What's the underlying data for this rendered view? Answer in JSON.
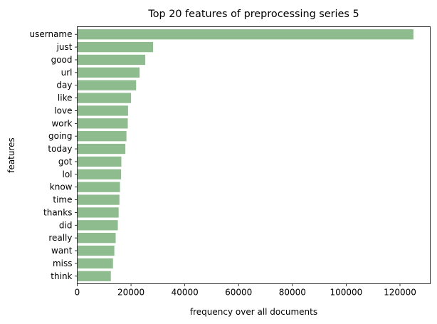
{
  "chart_data": {
    "type": "bar",
    "orientation": "horizontal",
    "title": "Top 20 features of preprocessing series 5",
    "xlabel": "frequency over all documents",
    "ylabel": "features",
    "categories": [
      "username",
      "just",
      "good",
      "url",
      "day",
      "like",
      "love",
      "work",
      "going",
      "today",
      "got",
      "lol",
      "know",
      "time",
      "thanks",
      "did",
      "really",
      "want",
      "miss",
      "think"
    ],
    "values": [
      125000,
      28200,
      25300,
      23200,
      21900,
      20000,
      18900,
      18800,
      18300,
      17900,
      16400,
      16300,
      15900,
      15700,
      15400,
      15100,
      14300,
      13800,
      13300,
      12500
    ],
    "xlim": [
      0,
      131250
    ],
    "xticks": [
      0,
      20000,
      40000,
      60000,
      80000,
      100000,
      120000
    ],
    "xtick_labels": [
      "0",
      "20000",
      "40000",
      "60000",
      "80000",
      "100000",
      "120000"
    ],
    "bar_color": "#8fbc8f",
    "grid": false,
    "legend": "none"
  }
}
